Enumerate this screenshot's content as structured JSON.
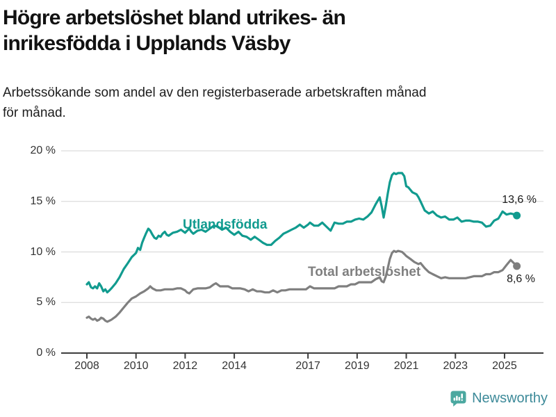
{
  "header": {
    "title_line1": "Högre arbetslöshet bland utrikes- än",
    "title_line2": "inrikesfödda i Upplands Väsby",
    "subtitle_line1": "Arbetssökande som andel av den registerbaserade arbetskraften månad",
    "subtitle_line2": "för månad."
  },
  "footer": {
    "brand": "Newsworthy",
    "icon": "newsworthy-bar-chart-speech-bubble-icon",
    "icon_color": "#4ba8a0",
    "text_color": "#3d8a99"
  },
  "chart_data": {
    "type": "line",
    "title": "Högre arbetslöshet bland utrikes- än inrikesfödda i Upplands Väsby",
    "subtitle": "Arbetssökande som andel av den registerbaserade arbetskraften månad för månad.",
    "unit": "percent",
    "grid": "horizontal",
    "legend_position": "inline-labels",
    "xlim": [
      2007.9,
      2026.6
    ],
    "ylim": [
      0,
      20
    ],
    "x_tick_years": [
      2008,
      2010,
      2012,
      2014,
      2017,
      2019,
      2021,
      2023,
      2025
    ],
    "x_tick_labels": [
      "2008",
      "2010",
      "2012",
      "2014",
      "2017",
      "2019",
      "2021",
      "2023",
      "2025"
    ],
    "y_tick_values": [
      0,
      5,
      10,
      15,
      20
    ],
    "y_tick_labels": [
      "0 %",
      "5 %",
      "10 %",
      "15 %",
      "20 %"
    ],
    "axis_color": "#3d3d3d",
    "gridline_color": "#dcdcdc",
    "series": [
      {
        "name": "Utlandsfödda",
        "color": "#119b8f",
        "end_label": "13,6 %",
        "end_value": 13.6,
        "points": [
          [
            2008.0,
            6.8
          ],
          [
            2008.08,
            7.0
          ],
          [
            2008.17,
            6.5
          ],
          [
            2008.25,
            6.4
          ],
          [
            2008.33,
            6.6
          ],
          [
            2008.42,
            6.4
          ],
          [
            2008.5,
            6.9
          ],
          [
            2008.58,
            6.6
          ],
          [
            2008.67,
            6.1
          ],
          [
            2008.75,
            6.3
          ],
          [
            2008.83,
            6.0
          ],
          [
            2008.92,
            6.2
          ],
          [
            2009.0,
            6.4
          ],
          [
            2009.17,
            6.9
          ],
          [
            2009.33,
            7.5
          ],
          [
            2009.5,
            8.3
          ],
          [
            2009.67,
            8.9
          ],
          [
            2009.83,
            9.5
          ],
          [
            2010.0,
            9.9
          ],
          [
            2010.08,
            10.4
          ],
          [
            2010.17,
            10.2
          ],
          [
            2010.25,
            10.9
          ],
          [
            2010.33,
            11.4
          ],
          [
            2010.42,
            11.9
          ],
          [
            2010.5,
            12.3
          ],
          [
            2010.58,
            12.1
          ],
          [
            2010.67,
            11.7
          ],
          [
            2010.75,
            11.4
          ],
          [
            2010.83,
            11.3
          ],
          [
            2010.92,
            11.6
          ],
          [
            2011.0,
            11.5
          ],
          [
            2011.08,
            11.8
          ],
          [
            2011.17,
            12.0
          ],
          [
            2011.25,
            11.7
          ],
          [
            2011.33,
            11.6
          ],
          [
            2011.5,
            11.9
          ],
          [
            2011.67,
            12.0
          ],
          [
            2011.83,
            12.2
          ],
          [
            2012.0,
            11.9
          ],
          [
            2012.08,
            12.1
          ],
          [
            2012.17,
            12.3
          ],
          [
            2012.25,
            12.0
          ],
          [
            2012.33,
            11.8
          ],
          [
            2012.5,
            12.1
          ],
          [
            2012.67,
            12.2
          ],
          [
            2012.83,
            12.0
          ],
          [
            2013.0,
            12.3
          ],
          [
            2013.17,
            12.6
          ],
          [
            2013.33,
            12.5
          ],
          [
            2013.5,
            12.2
          ],
          [
            2013.67,
            12.4
          ],
          [
            2013.83,
            12.0
          ],
          [
            2014.0,
            11.7
          ],
          [
            2014.17,
            12.0
          ],
          [
            2014.33,
            11.6
          ],
          [
            2014.5,
            11.5
          ],
          [
            2014.67,
            11.2
          ],
          [
            2014.83,
            11.5
          ],
          [
            2015.0,
            11.2
          ],
          [
            2015.17,
            10.9
          ],
          [
            2015.33,
            10.7
          ],
          [
            2015.5,
            10.7
          ],
          [
            2015.67,
            11.1
          ],
          [
            2015.83,
            11.4
          ],
          [
            2016.0,
            11.8
          ],
          [
            2016.17,
            12.0
          ],
          [
            2016.33,
            12.2
          ],
          [
            2016.5,
            12.4
          ],
          [
            2016.67,
            12.7
          ],
          [
            2016.83,
            12.4
          ],
          [
            2017.0,
            12.7
          ],
          [
            2017.08,
            12.9
          ],
          [
            2017.25,
            12.6
          ],
          [
            2017.42,
            12.6
          ],
          [
            2017.58,
            12.9
          ],
          [
            2017.75,
            12.5
          ],
          [
            2017.92,
            12.1
          ],
          [
            2018.08,
            12.9
          ],
          [
            2018.25,
            12.8
          ],
          [
            2018.42,
            12.8
          ],
          [
            2018.58,
            13.0
          ],
          [
            2018.75,
            13.0
          ],
          [
            2018.92,
            13.2
          ],
          [
            2019.08,
            13.3
          ],
          [
            2019.25,
            13.2
          ],
          [
            2019.42,
            13.5
          ],
          [
            2019.58,
            13.9
          ],
          [
            2019.75,
            14.7
          ],
          [
            2019.92,
            15.4
          ],
          [
            2020.0,
            14.5
          ],
          [
            2020.08,
            13.4
          ],
          [
            2020.17,
            14.6
          ],
          [
            2020.25,
            15.8
          ],
          [
            2020.33,
            16.9
          ],
          [
            2020.42,
            17.6
          ],
          [
            2020.5,
            17.8
          ],
          [
            2020.58,
            17.7
          ],
          [
            2020.67,
            17.8
          ],
          [
            2020.83,
            17.8
          ],
          [
            2020.92,
            17.5
          ],
          [
            2021.0,
            16.5
          ],
          [
            2021.08,
            16.4
          ],
          [
            2021.25,
            15.9
          ],
          [
            2021.42,
            15.7
          ],
          [
            2021.5,
            15.4
          ],
          [
            2021.58,
            15.0
          ],
          [
            2021.75,
            14.1
          ],
          [
            2021.92,
            13.8
          ],
          [
            2022.08,
            14.0
          ],
          [
            2022.25,
            13.6
          ],
          [
            2022.42,
            13.4
          ],
          [
            2022.58,
            13.5
          ],
          [
            2022.75,
            13.2
          ],
          [
            2022.92,
            13.2
          ],
          [
            2023.08,
            13.4
          ],
          [
            2023.25,
            13.0
          ],
          [
            2023.42,
            13.1
          ],
          [
            2023.58,
            13.1
          ],
          [
            2023.75,
            13.0
          ],
          [
            2023.92,
            13.0
          ],
          [
            2024.08,
            12.9
          ],
          [
            2024.25,
            12.5
          ],
          [
            2024.42,
            12.6
          ],
          [
            2024.58,
            13.1
          ],
          [
            2024.75,
            13.3
          ],
          [
            2024.92,
            14.0
          ],
          [
            2025.08,
            13.7
          ],
          [
            2025.25,
            13.8
          ],
          [
            2025.42,
            13.7
          ],
          [
            2025.5,
            13.6
          ]
        ]
      },
      {
        "name": "Total arbetslöshet",
        "color": "#7f7f7f",
        "end_label": "8,6 %",
        "end_value": 8.6,
        "points": [
          [
            2008.0,
            3.5
          ],
          [
            2008.08,
            3.6
          ],
          [
            2008.17,
            3.4
          ],
          [
            2008.25,
            3.3
          ],
          [
            2008.33,
            3.4
          ],
          [
            2008.42,
            3.2
          ],
          [
            2008.5,
            3.3
          ],
          [
            2008.58,
            3.5
          ],
          [
            2008.67,
            3.4
          ],
          [
            2008.75,
            3.2
          ],
          [
            2008.83,
            3.1
          ],
          [
            2008.92,
            3.2
          ],
          [
            2009.0,
            3.3
          ],
          [
            2009.17,
            3.6
          ],
          [
            2009.33,
            4.0
          ],
          [
            2009.5,
            4.5
          ],
          [
            2009.67,
            5.0
          ],
          [
            2009.83,
            5.4
          ],
          [
            2010.0,
            5.6
          ],
          [
            2010.17,
            5.9
          ],
          [
            2010.33,
            6.1
          ],
          [
            2010.5,
            6.4
          ],
          [
            2010.58,
            6.6
          ],
          [
            2010.67,
            6.4
          ],
          [
            2010.83,
            6.2
          ],
          [
            2011.0,
            6.2
          ],
          [
            2011.17,
            6.3
          ],
          [
            2011.33,
            6.3
          ],
          [
            2011.5,
            6.3
          ],
          [
            2011.67,
            6.4
          ],
          [
            2011.83,
            6.4
          ],
          [
            2012.0,
            6.2
          ],
          [
            2012.08,
            6.0
          ],
          [
            2012.17,
            5.9
          ],
          [
            2012.33,
            6.3
          ],
          [
            2012.5,
            6.4
          ],
          [
            2012.67,
            6.4
          ],
          [
            2012.83,
            6.4
          ],
          [
            2013.0,
            6.5
          ],
          [
            2013.17,
            6.8
          ],
          [
            2013.25,
            6.9
          ],
          [
            2013.42,
            6.6
          ],
          [
            2013.58,
            6.6
          ],
          [
            2013.75,
            6.6
          ],
          [
            2013.92,
            6.4
          ],
          [
            2014.08,
            6.4
          ],
          [
            2014.25,
            6.4
          ],
          [
            2014.42,
            6.3
          ],
          [
            2014.58,
            6.1
          ],
          [
            2014.75,
            6.3
          ],
          [
            2014.92,
            6.1
          ],
          [
            2015.08,
            6.1
          ],
          [
            2015.25,
            6.0
          ],
          [
            2015.42,
            6.0
          ],
          [
            2015.58,
            6.2
          ],
          [
            2015.75,
            6.0
          ],
          [
            2015.92,
            6.2
          ],
          [
            2016.08,
            6.2
          ],
          [
            2016.25,
            6.3
          ],
          [
            2016.42,
            6.3
          ],
          [
            2016.58,
            6.3
          ],
          [
            2016.75,
            6.3
          ],
          [
            2016.92,
            6.3
          ],
          [
            2017.08,
            6.6
          ],
          [
            2017.25,
            6.4
          ],
          [
            2017.42,
            6.4
          ],
          [
            2017.58,
            6.4
          ],
          [
            2017.75,
            6.4
          ],
          [
            2017.92,
            6.4
          ],
          [
            2018.08,
            6.4
          ],
          [
            2018.25,
            6.6
          ],
          [
            2018.42,
            6.6
          ],
          [
            2018.58,
            6.6
          ],
          [
            2018.75,
            6.8
          ],
          [
            2018.92,
            6.8
          ],
          [
            2019.08,
            7.0
          ],
          [
            2019.25,
            7.0
          ],
          [
            2019.42,
            7.0
          ],
          [
            2019.58,
            7.0
          ],
          [
            2019.75,
            7.3
          ],
          [
            2019.92,
            7.5
          ],
          [
            2020.0,
            7.1
          ],
          [
            2020.08,
            7.0
          ],
          [
            2020.17,
            7.6
          ],
          [
            2020.25,
            8.4
          ],
          [
            2020.33,
            9.3
          ],
          [
            2020.42,
            9.9
          ],
          [
            2020.5,
            10.1
          ],
          [
            2020.58,
            10.0
          ],
          [
            2020.67,
            10.1
          ],
          [
            2020.83,
            10.0
          ],
          [
            2020.92,
            9.8
          ],
          [
            2021.0,
            9.6
          ],
          [
            2021.17,
            9.3
          ],
          [
            2021.33,
            9.0
          ],
          [
            2021.5,
            8.8
          ],
          [
            2021.58,
            8.9
          ],
          [
            2021.75,
            8.4
          ],
          [
            2021.92,
            8.0
          ],
          [
            2022.08,
            7.8
          ],
          [
            2022.25,
            7.6
          ],
          [
            2022.42,
            7.4
          ],
          [
            2022.58,
            7.5
          ],
          [
            2022.75,
            7.4
          ],
          [
            2022.92,
            7.4
          ],
          [
            2023.08,
            7.4
          ],
          [
            2023.25,
            7.4
          ],
          [
            2023.42,
            7.4
          ],
          [
            2023.58,
            7.5
          ],
          [
            2023.75,
            7.6
          ],
          [
            2023.92,
            7.6
          ],
          [
            2024.08,
            7.6
          ],
          [
            2024.25,
            7.8
          ],
          [
            2024.42,
            7.8
          ],
          [
            2024.58,
            8.0
          ],
          [
            2024.75,
            8.0
          ],
          [
            2024.92,
            8.2
          ],
          [
            2025.08,
            8.7
          ],
          [
            2025.25,
            9.2
          ],
          [
            2025.42,
            8.8
          ],
          [
            2025.5,
            8.6
          ]
        ]
      }
    ]
  }
}
